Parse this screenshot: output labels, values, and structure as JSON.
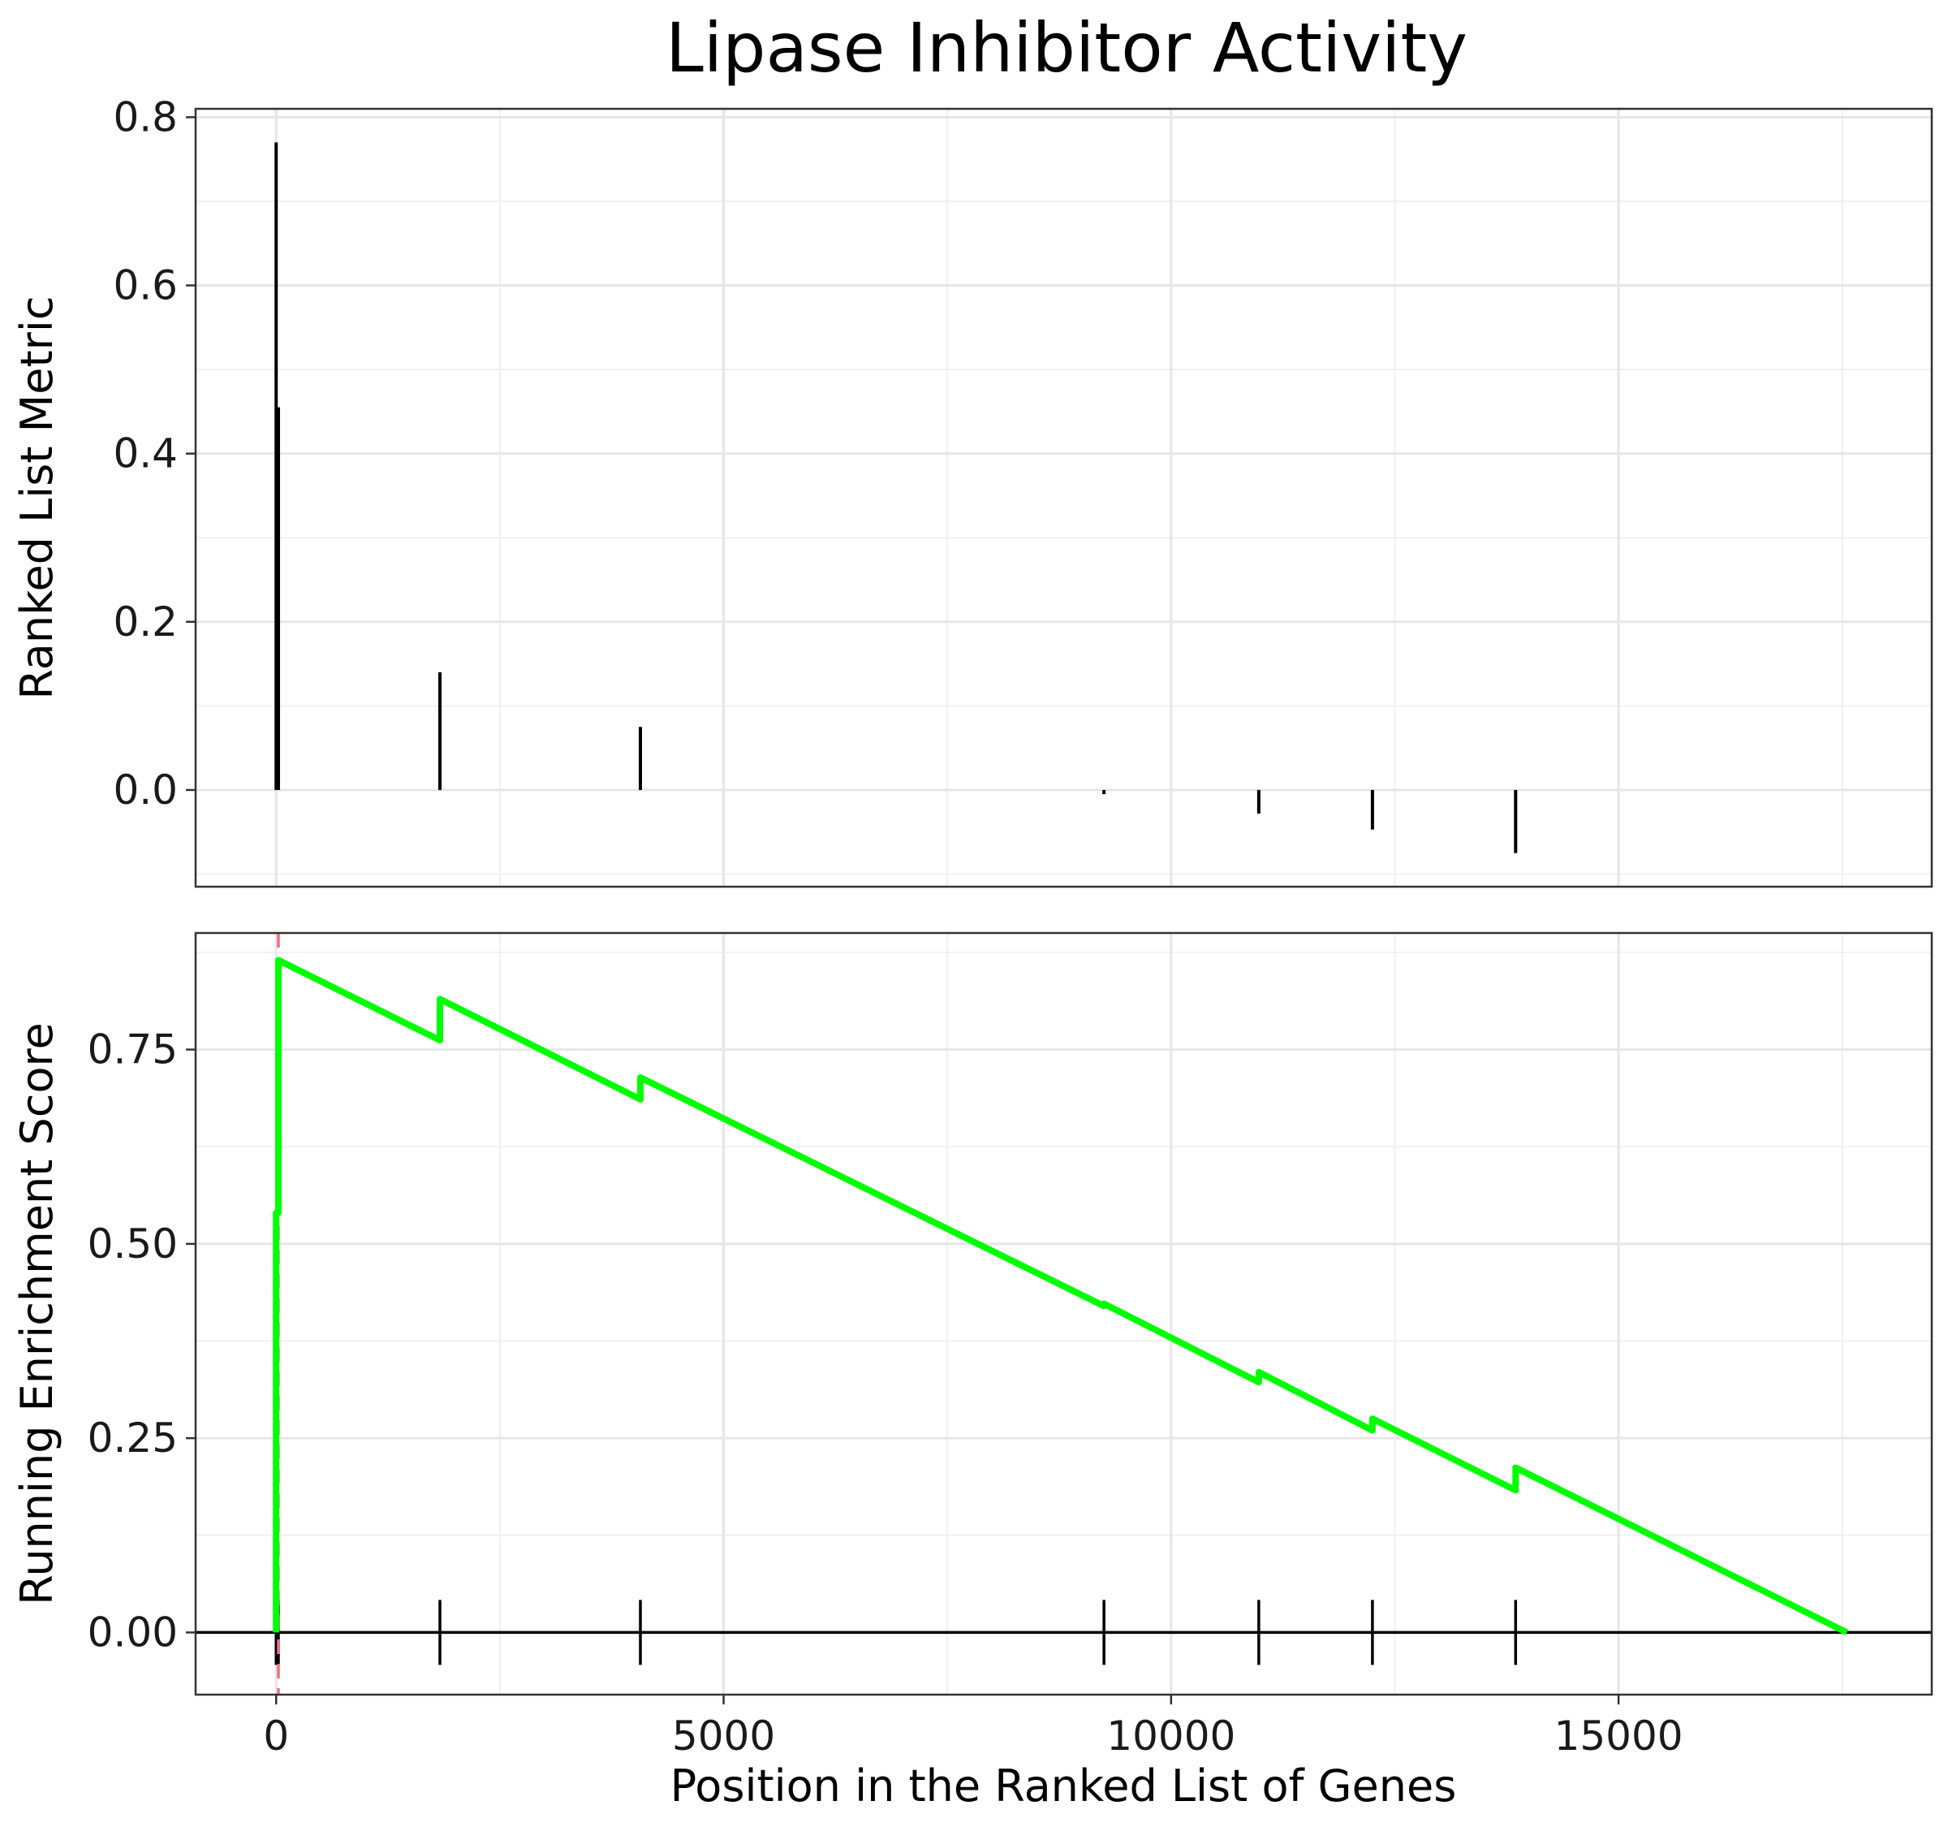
{
  "chart_data": {
    "type": "line",
    "title": "Lipase Inhibitor Activity",
    "xlabel": "Position in the Ranked List of Genes",
    "xlim": [
      -900,
      18500
    ],
    "x_ticks": [
      0,
      5000,
      10000,
      15000
    ],
    "x_tick_labels": [
      "0",
      "5000",
      "10000",
      "15000"
    ],
    "panels": [
      {
        "name": "ranked-list-metric",
        "type": "bar",
        "ylabel": "Ranked List Metric",
        "ylim": [
          -0.115,
          0.81
        ],
        "y_ticks": [
          0.0,
          0.2,
          0.4,
          0.6,
          0.8
        ],
        "y_tick_labels": [
          "0.0",
          "0.2",
          "0.4",
          "0.6",
          "0.8"
        ],
        "grid": true,
        "x": [
          0,
          25,
          1830,
          4070,
          9250,
          10980,
          12250,
          13850
        ],
        "values": [
          0.77,
          0.455,
          0.14,
          0.075,
          -0.005,
          -0.028,
          -0.047,
          -0.075
        ],
        "color": "#000000"
      },
      {
        "name": "running-enrichment-score",
        "type": "line",
        "ylabel": "Running Enrichment Score",
        "ylim": [
          -0.08,
          0.9
        ],
        "y_ticks": [
          0.0,
          0.25,
          0.5,
          0.75
        ],
        "y_tick_labels": [
          "0.00",
          "0.25",
          "0.50",
          "0.75"
        ],
        "grid": true,
        "hline": 0,
        "vline": {
          "x": 25,
          "color": "#f07080",
          "style": "dashed"
        },
        "line_color": "#00ff00",
        "points": [
          [
            0,
            0.0
          ],
          [
            0,
            0.54
          ],
          [
            25,
            0.54
          ],
          [
            25,
            0.865
          ],
          [
            1830,
            0.762
          ],
          [
            1830,
            0.815
          ],
          [
            4070,
            0.686
          ],
          [
            4070,
            0.714
          ],
          [
            9250,
            0.42
          ],
          [
            9250,
            0.423
          ],
          [
            10980,
            0.322
          ],
          [
            10980,
            0.335
          ],
          [
            12250,
            0.26
          ],
          [
            12250,
            0.275
          ],
          [
            13850,
            0.183
          ],
          [
            13850,
            0.212
          ],
          [
            17550,
            0.0
          ]
        ],
        "hits": [
          0,
          25,
          1830,
          4070,
          9250,
          10980,
          12250,
          13850
        ]
      }
    ]
  }
}
